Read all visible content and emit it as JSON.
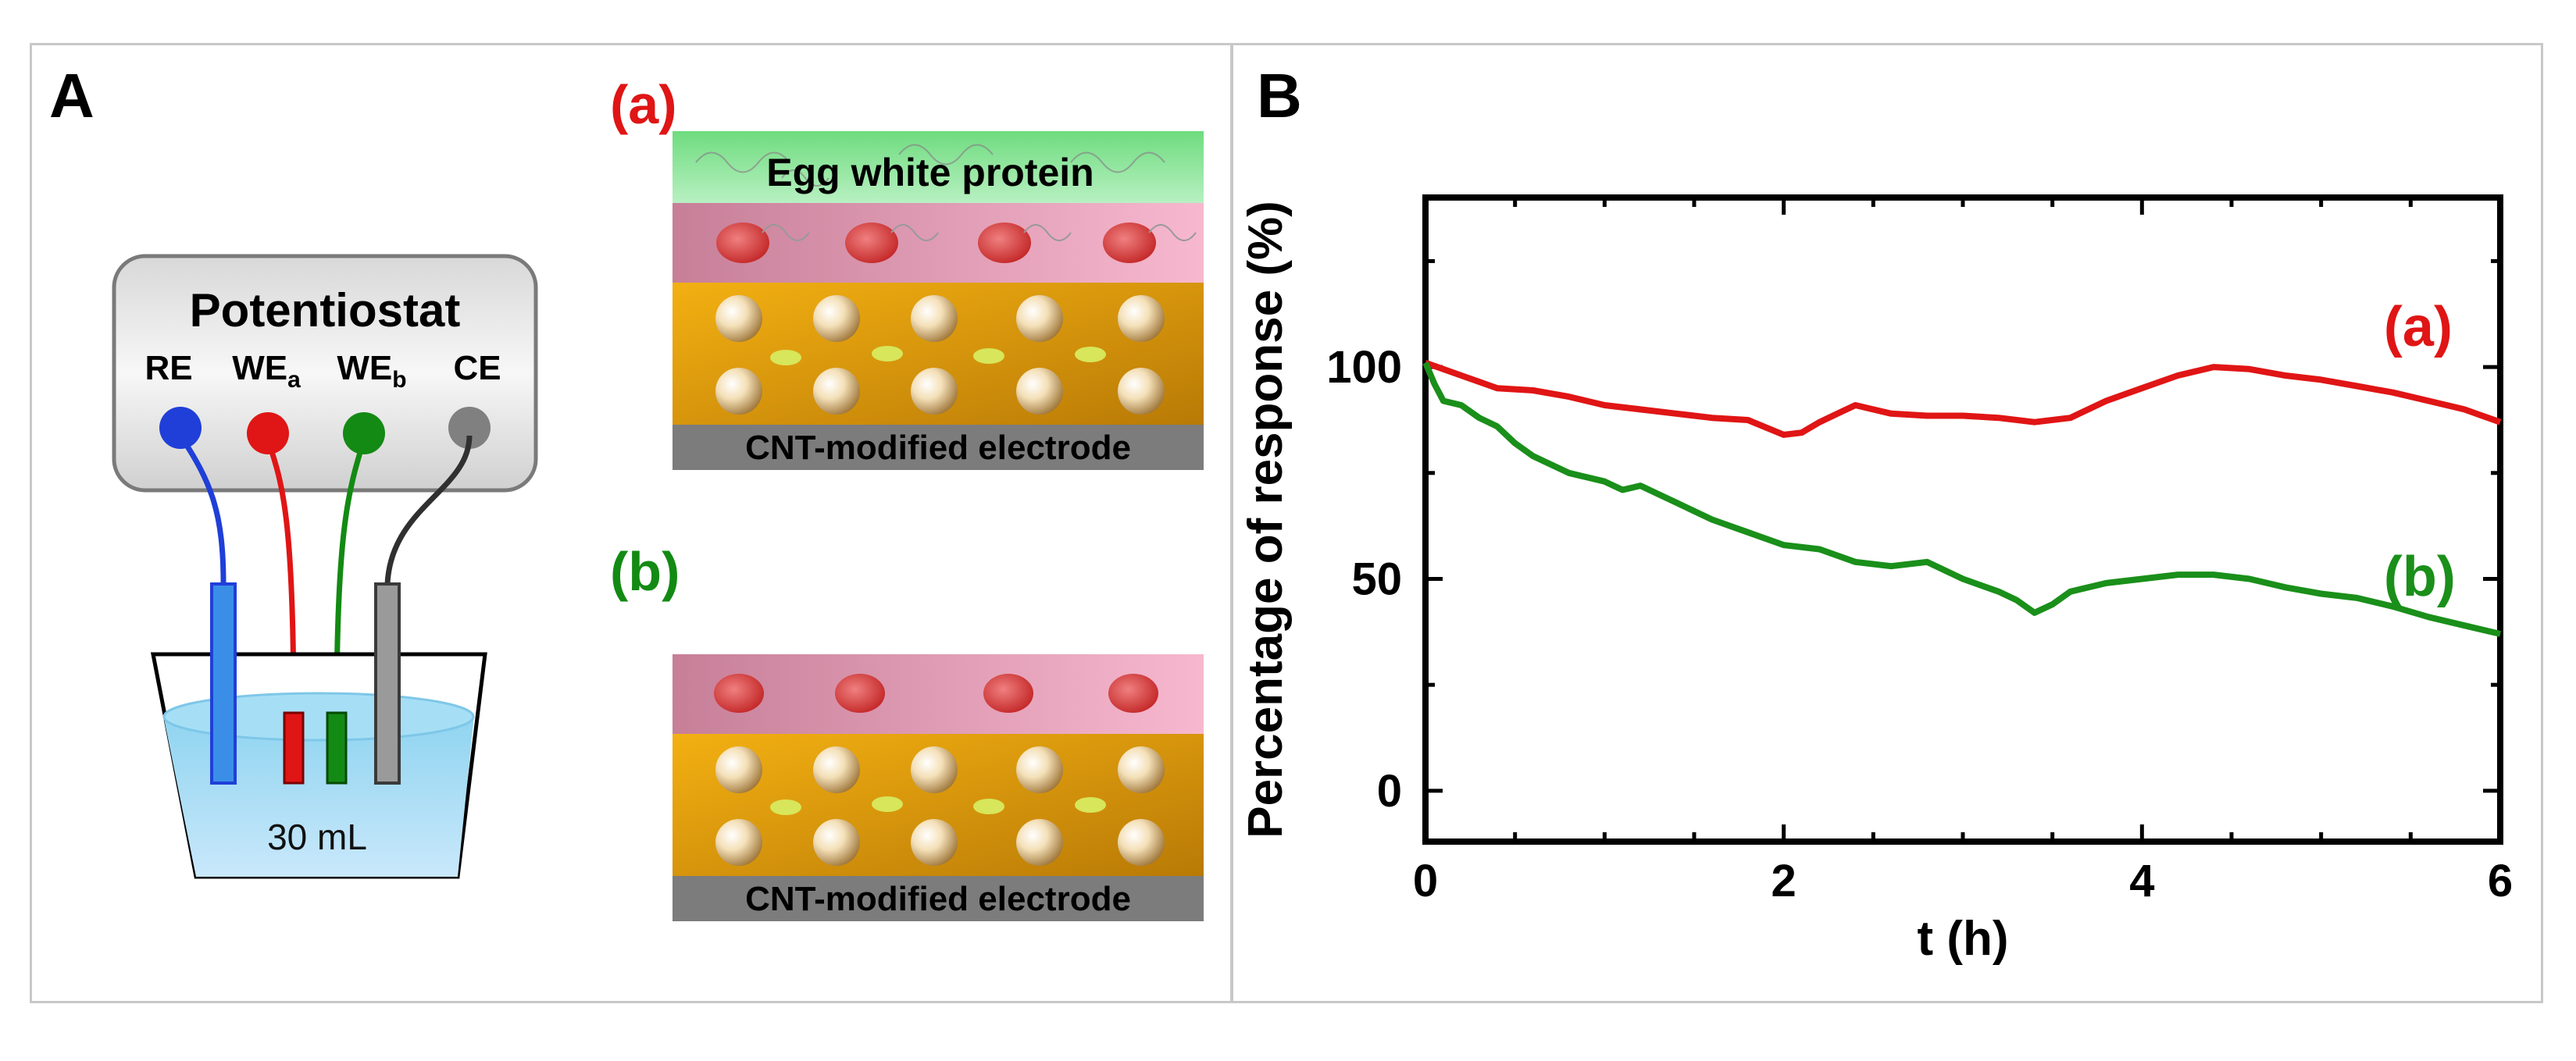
{
  "panel_a": {
    "label": "A",
    "potentiostat": {
      "title": "Potentiostat",
      "electrodes": [
        {
          "name": "RE",
          "sub": "",
          "color": "#1f3fd8"
        },
        {
          "name": "WE",
          "sub": "a",
          "color": "#e01515"
        },
        {
          "name": "WE",
          "sub": "b",
          "color": "#138a13"
        },
        {
          "name": "CE",
          "sub": "",
          "color": "#808080"
        }
      ]
    },
    "beaker_label": "30 mL",
    "scheme_a": {
      "tag": "(a)",
      "tag_color": "#e01515",
      "top_layer": "Egg white protein",
      "base_layer": "CNT-modified electrode"
    },
    "scheme_b": {
      "tag": "(b)",
      "tag_color": "#138a13",
      "base_layer": "CNT-modified electrode"
    }
  },
  "panel_b": {
    "label": "B"
  },
  "chart_data": {
    "type": "line",
    "xlabel": "t (h)",
    "ylabel": "Percentage of response (%)",
    "xlim": [
      0,
      6
    ],
    "ylim": [
      -12,
      140
    ],
    "xticks": [
      0,
      2,
      4,
      6
    ],
    "yticks": [
      0,
      50,
      100
    ],
    "grid": false,
    "series": [
      {
        "name": "(a)",
        "color": "#e01515",
        "x": [
          0,
          0.2,
          0.4,
          0.6,
          0.8,
          1.0,
          1.2,
          1.4,
          1.6,
          1.8,
          2.0,
          2.1,
          2.2,
          2.3,
          2.4,
          2.6,
          2.8,
          3.0,
          3.2,
          3.4,
          3.6,
          3.8,
          4.0,
          4.2,
          4.4,
          4.6,
          4.8,
          5.0,
          5.2,
          5.4,
          5.6,
          5.8,
          6.0
        ],
        "y": [
          101,
          98,
          95,
          94.5,
          93,
          91,
          90,
          89,
          88,
          87.5,
          84,
          84.5,
          87,
          89,
          91,
          89,
          88.5,
          88.5,
          88,
          87,
          88,
          92,
          95,
          98,
          100,
          99.5,
          98,
          97,
          95.5,
          94,
          92,
          90,
          87
        ]
      },
      {
        "name": "(b)",
        "color": "#1a8f1a",
        "x": [
          0,
          0.05,
          0.1,
          0.2,
          0.3,
          0.4,
          0.5,
          0.6,
          0.8,
          1.0,
          1.1,
          1.2,
          1.4,
          1.6,
          1.8,
          2.0,
          2.2,
          2.4,
          2.6,
          2.8,
          3.0,
          3.2,
          3.3,
          3.4,
          3.5,
          3.6,
          3.8,
          4.0,
          4.2,
          4.4,
          4.6,
          4.8,
          5.0,
          5.2,
          5.4,
          5.6,
          5.8,
          6.0
        ],
        "y": [
          101,
          96,
          92,
          91,
          88,
          86,
          82,
          79,
          75,
          73,
          71,
          72,
          68,
          64,
          61,
          58,
          57,
          54,
          53,
          54,
          50,
          47,
          45,
          42,
          44,
          47,
          49,
          50,
          51,
          51,
          50,
          48,
          46.5,
          45.5,
          43.5,
          41,
          39,
          37
        ]
      }
    ],
    "annotations": [
      {
        "text": "(a)",
        "color": "#e01515"
      },
      {
        "text": "(b)",
        "color": "#1a8f1a"
      }
    ]
  }
}
